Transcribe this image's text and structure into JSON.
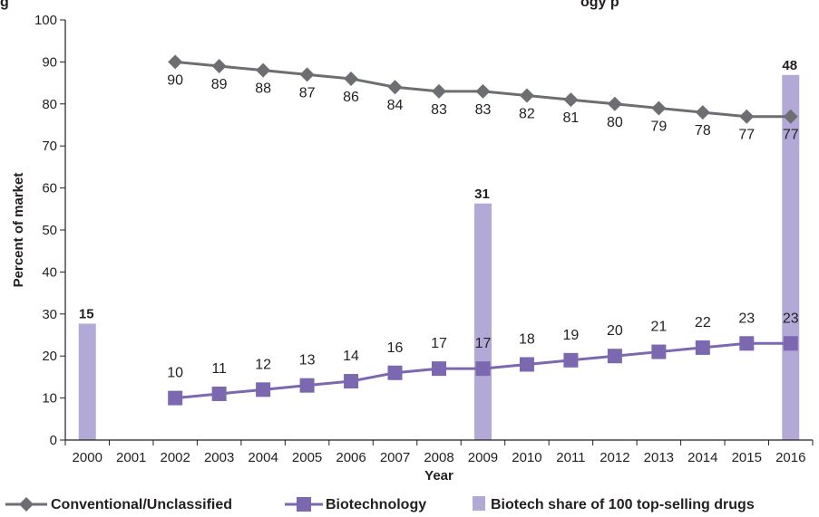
{
  "chart_data": {
    "type": "line",
    "title": "g",
    "title_tail": "ogy p",
    "xlabel": "Year",
    "ylabel": "Percent of market",
    "ylim": [
      0,
      100
    ],
    "yticks": [
      0,
      10,
      20,
      30,
      40,
      50,
      60,
      70,
      80,
      90,
      100
    ],
    "categories": [
      "2000",
      "2001",
      "2002",
      "2003",
      "2004",
      "2005",
      "2006",
      "2007",
      "2008",
      "2009",
      "2010",
      "2011",
      "2012",
      "2013",
      "2014",
      "2015",
      "2016"
    ],
    "series": [
      {
        "name": "Conventional/Unclassified",
        "kind": "line",
        "marker": "diamond",
        "color": "#6d6e71",
        "x": [
          "2002",
          "2003",
          "2004",
          "2005",
          "2006",
          "2007",
          "2008",
          "2009",
          "2010",
          "2011",
          "2012",
          "2013",
          "2014",
          "2015",
          "2016"
        ],
        "values": [
          90,
          89,
          88,
          87,
          86,
          84,
          83,
          83,
          82,
          81,
          80,
          79,
          78,
          77,
          77
        ]
      },
      {
        "name": "Biotechnology",
        "kind": "line",
        "marker": "square",
        "color": "#7b68b0",
        "x": [
          "2002",
          "2003",
          "2004",
          "2005",
          "2006",
          "2007",
          "2008",
          "2009",
          "2010",
          "2011",
          "2012",
          "2013",
          "2014",
          "2015",
          "2016"
        ],
        "values": [
          10,
          11,
          12,
          13,
          14,
          16,
          17,
          17,
          18,
          19,
          20,
          21,
          22,
          23,
          23
        ]
      },
      {
        "name": "Biotech share of 100 top-selling drugs",
        "kind": "bar",
        "color": "#b3a9d6",
        "x": [
          "2000",
          "2009",
          "2016"
        ],
        "values": [
          15,
          31,
          48
        ],
        "plotted_height_percent": [
          27.7,
          56.3,
          86.9
        ]
      }
    ],
    "legend_position": "bottom",
    "grid": false
  }
}
